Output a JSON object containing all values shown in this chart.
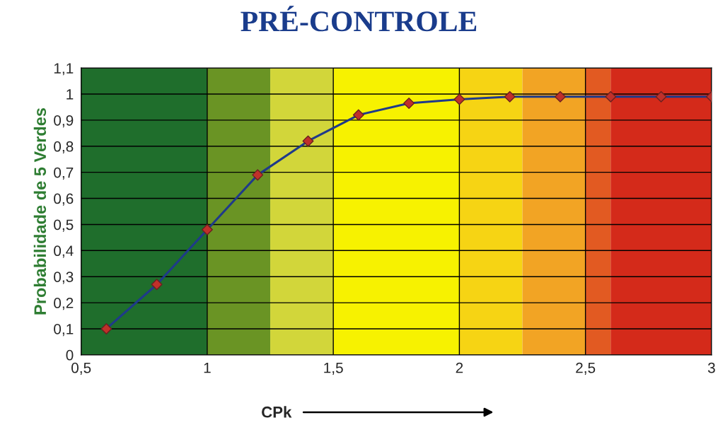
{
  "chart_data": {
    "type": "line",
    "title": "PRÉ-CONTROLE",
    "xlabel": "CPk",
    "ylabel": "Probabilidade de 5 Verdes",
    "x": [
      0.6,
      0.8,
      1.0,
      1.2,
      1.4,
      1.6,
      1.8,
      2.0,
      2.2,
      2.4,
      2.6,
      2.8,
      3.0
    ],
    "series": [
      {
        "color": "#1f3a8a",
        "values": [
          0.1,
          0.27,
          0.48,
          0.69,
          0.82,
          0.92,
          0.965,
          0.98,
          0.99,
          0.99,
          0.99,
          0.99,
          0.99
        ]
      }
    ],
    "marker": "diamond",
    "line_style": "solid",
    "grid": true,
    "xlim": [
      0.5,
      3
    ],
    "ylim": [
      0,
      1.1
    ],
    "xticks": [
      {
        "value": 0.5,
        "label": "0,5"
      },
      1,
      {
        "value": 1.5,
        "label": "1,5"
      },
      2,
      {
        "value": 2.5,
        "label": "2,5"
      },
      3
    ],
    "yticks": [
      0,
      {
        "value": 0.1,
        "label": "0,1"
      },
      {
        "value": 0.2,
        "label": "0,2"
      },
      {
        "value": 0.3,
        "label": "0,3"
      },
      {
        "value": 0.4,
        "label": "0,4"
      },
      {
        "value": 0.5,
        "label": "0,5"
      },
      {
        "value": 0.6,
        "label": "0,6"
      },
      {
        "value": 0.7,
        "label": "0,7"
      },
      {
        "value": 0.8,
        "label": "0,8"
      },
      {
        "value": 0.9,
        "label": "0,9"
      },
      1,
      {
        "value": 1.1,
        "label": "1,1"
      }
    ],
    "bands": [
      {
        "axis": "x",
        "from": 0.5,
        "to": 1,
        "color": "#1f6e2c"
      },
      {
        "axis": "x",
        "from": 1,
        "to": 1.25,
        "color": "#6a9424"
      },
      {
        "axis": "x",
        "from": 1.25,
        "to": 1.5,
        "color": "#d2d63a"
      },
      {
        "axis": "x",
        "from": 1.5,
        "to": 2,
        "color": "#f7f200"
      },
      {
        "axis": "x",
        "from": 2,
        "to": 2.25,
        "color": "#f6d414"
      },
      {
        "axis": "x",
        "from": 2.25,
        "to": 2.5,
        "color": "#f2a424"
      },
      {
        "axis": "x",
        "from": 2.5,
        "to": 2.6,
        "color": "#e25a22"
      },
      {
        "axis": "x",
        "from": 2.6,
        "to": 3,
        "color": "#d42a1a"
      }
    ]
  }
}
